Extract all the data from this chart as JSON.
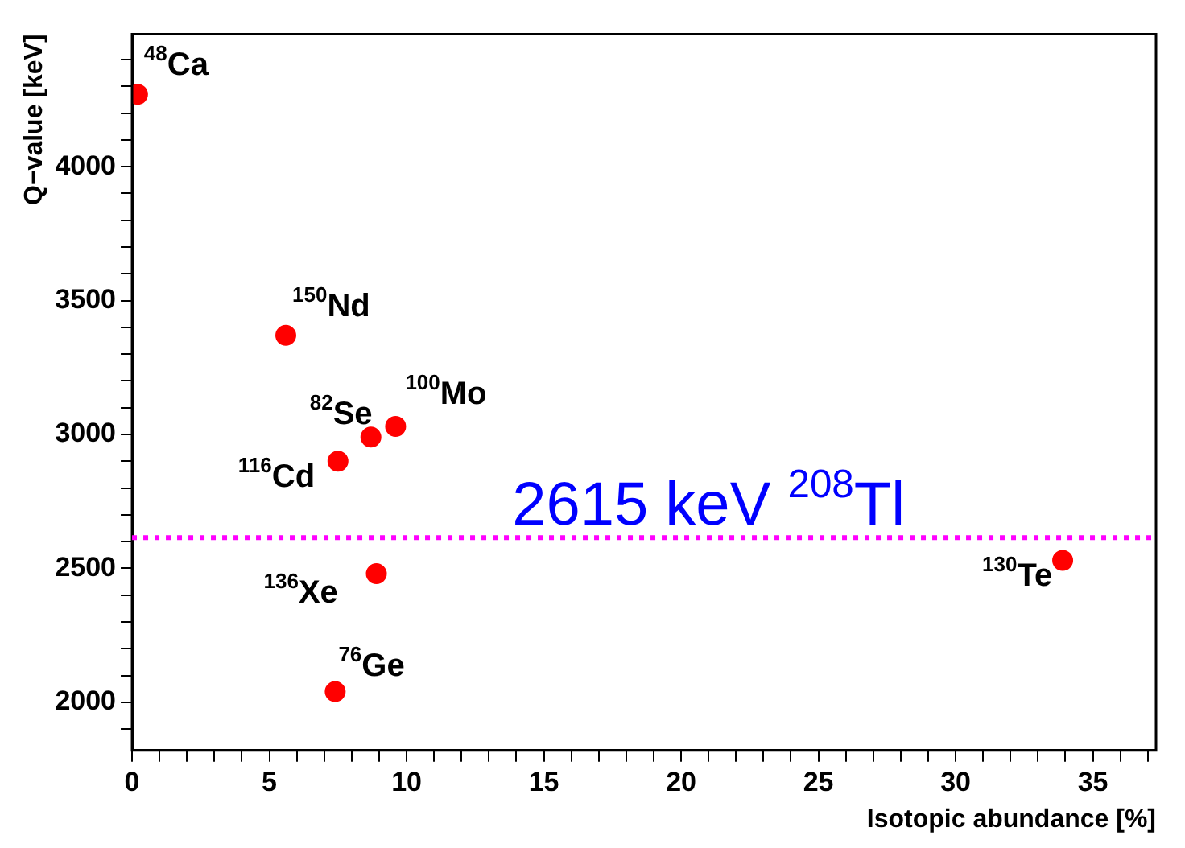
{
  "chart_data": {
    "type": "scatter",
    "xlabel": "Isotopic abundance [%]",
    "ylabel": "Q−value [keV]",
    "x": [
      0.2,
      5.6,
      8.7,
      9.6,
      7.5,
      8.9,
      7.4,
      33.9
    ],
    "series": [
      {
        "color": "#ff0000",
        "values": [
          4270,
          3370,
          2990,
          3030,
          2900,
          2480,
          2040,
          2530
        ]
      }
    ],
    "marker": "circle",
    "grid": false,
    "xlim": [
      0,
      37.3
    ],
    "ylim": [
      1820,
      4495
    ],
    "xticks": [
      0,
      {
        "value": 1,
        "label": null
      },
      {
        "value": 2,
        "label": null
      },
      {
        "value": 3,
        "label": null
      },
      {
        "value": 4,
        "label": null
      },
      5,
      {
        "value": 6,
        "label": null
      },
      {
        "value": 7,
        "label": null
      },
      {
        "value": 8,
        "label": null
      },
      {
        "value": 9,
        "label": null
      },
      10,
      {
        "value": 11,
        "label": null
      },
      {
        "value": 12,
        "label": null
      },
      {
        "value": 13,
        "label": null
      },
      {
        "value": 14,
        "label": null
      },
      15,
      {
        "value": 16,
        "label": null
      },
      {
        "value": 17,
        "label": null
      },
      {
        "value": 18,
        "label": null
      },
      {
        "value": 19,
        "label": null
      },
      20,
      {
        "value": 21,
        "label": null
      },
      {
        "value": 22,
        "label": null
      },
      {
        "value": 23,
        "label": null
      },
      {
        "value": 24,
        "label": null
      },
      25,
      {
        "value": 26,
        "label": null
      },
      {
        "value": 27,
        "label": null
      },
      {
        "value": 28,
        "label": null
      },
      {
        "value": 29,
        "label": null
      },
      30,
      {
        "value": 31,
        "label": null
      },
      {
        "value": 32,
        "label": null
      },
      {
        "value": 33,
        "label": null
      },
      {
        "value": 34,
        "label": null
      },
      35,
      {
        "value": 36,
        "label": null
      },
      {
        "value": 37,
        "label": null
      }
    ],
    "yticks": [
      {
        "value": 1900,
        "label": null
      },
      2000,
      {
        "value": 2100,
        "label": null
      },
      {
        "value": 2200,
        "label": null
      },
      {
        "value": 2300,
        "label": null
      },
      {
        "value": 2400,
        "label": null
      },
      2500,
      {
        "value": 2600,
        "label": null
      },
      {
        "value": 2700,
        "label": null
      },
      {
        "value": 2800,
        "label": null
      },
      {
        "value": 2900,
        "label": null
      },
      3000,
      {
        "value": 3100,
        "label": null
      },
      {
        "value": 3200,
        "label": null
      },
      {
        "value": 3300,
        "label": null
      },
      {
        "value": 3400,
        "label": null
      },
      3500,
      {
        "value": 3600,
        "label": null
      },
      {
        "value": 3700,
        "label": null
      },
      {
        "value": 3800,
        "label": null
      },
      {
        "value": 3900,
        "label": null
      },
      4000,
      {
        "value": 4100,
        "label": null
      },
      {
        "value": 4200,
        "label": null
      },
      {
        "value": 4300,
        "label": null
      },
      {
        "value": 4400,
        "label": null
      }
    ],
    "ref_lines": [
      {
        "axis": "y",
        "value": 2615,
        "label": "2615 keV $^{208}$Tl",
        "color": "#ff00ff",
        "line_style": "dotted"
      }
    ],
    "annotations": [
      {
        "text": "$^{48}$Ca",
        "x": 0.2,
        "y": 4270
      },
      {
        "text": "$^{150}$Nd",
        "x": 5.6,
        "y": 3370
      },
      {
        "text": "$^{82}$Se",
        "x": 8.7,
        "y": 2990
      },
      {
        "text": "$^{100}$Mo",
        "x": 9.6,
        "y": 3030
      },
      {
        "text": "$^{116}$Cd",
        "x": 7.5,
        "y": 2900
      },
      {
        "text": "$^{136}$Xe",
        "x": 8.9,
        "y": 2480
      },
      {
        "text": "$^{76}$Ge",
        "x": 7.4,
        "y": 2040
      },
      {
        "text": "$^{130}$Te",
        "x": 33.9,
        "y": 2530
      }
    ]
  }
}
